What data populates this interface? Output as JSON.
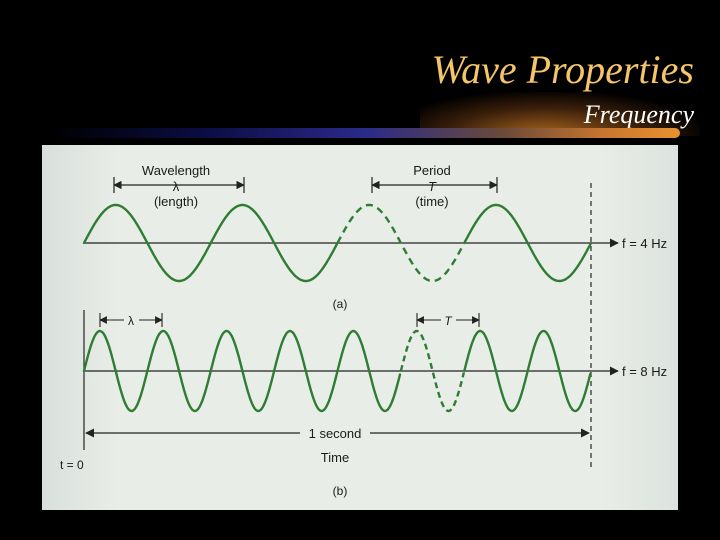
{
  "slide": {
    "title": "Wave Properties",
    "subtitle": "Frequency"
  },
  "figure": {
    "panel_a": {
      "wavelength_label": "Wavelength",
      "wavelength_symbol": "λ",
      "wavelength_note": "(length)",
      "period_label": "Period",
      "period_symbol": "T",
      "period_note": "(time)",
      "frequency_label": "f = 4 Hz",
      "frequency_hz": 4,
      "caption": "(a)"
    },
    "panel_b": {
      "wavelength_symbol": "λ",
      "period_symbol": "T",
      "frequency_label": "f = 8 Hz",
      "frequency_hz": 8,
      "duration_label": "1 second",
      "time_label": "Time",
      "origin_label": "t = 0",
      "caption": "(b)"
    },
    "colors": {
      "wave": "#2e7d32",
      "axis": "#222222"
    }
  }
}
